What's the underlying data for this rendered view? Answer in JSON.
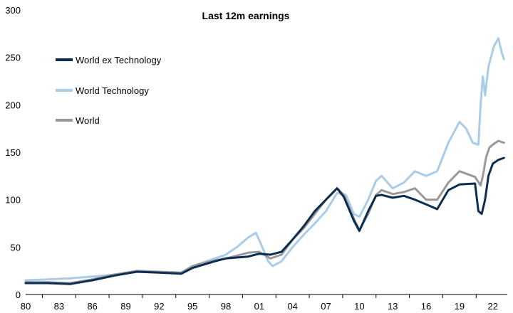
{
  "chart_data": {
    "type": "line",
    "title": "Last 12m earnings",
    "xlabel": "",
    "ylabel": "",
    "ylim": [
      0,
      300
    ],
    "xlim": [
      1980,
      2023.3
    ],
    "yticks": [
      0,
      50,
      100,
      150,
      200,
      250,
      300
    ],
    "xticks": [
      {
        "label": "80",
        "value": 1980
      },
      {
        "label": "83",
        "value": 1983
      },
      {
        "label": "86",
        "value": 1986
      },
      {
        "label": "89",
        "value": 1989
      },
      {
        "label": "92",
        "value": 1992
      },
      {
        "label": "95",
        "value": 1995
      },
      {
        "label": "98",
        "value": 1998
      },
      {
        "label": "01",
        "value": 2001
      },
      {
        "label": "04",
        "value": 2004
      },
      {
        "label": "07",
        "value": 2007
      },
      {
        "label": "10",
        "value": 2010
      },
      {
        "label": "13",
        "value": 2013
      },
      {
        "label": "16",
        "value": 2016
      },
      {
        "label": "19",
        "value": 2019
      },
      {
        "label": "22",
        "value": 2022
      }
    ],
    "grid": false,
    "legend": "top-left",
    "series": [
      {
        "name": "World Technology",
        "color": "#a9cce8",
        "points": [
          [
            1980,
            15
          ],
          [
            1982,
            16
          ],
          [
            1984,
            17
          ],
          [
            1986,
            19
          ],
          [
            1988,
            21
          ],
          [
            1990,
            24
          ],
          [
            1992,
            23
          ],
          [
            1994,
            23
          ],
          [
            1995,
            30
          ],
          [
            1997,
            38
          ],
          [
            1998,
            42
          ],
          [
            1999,
            50
          ],
          [
            2000,
            60
          ],
          [
            2000.7,
            65
          ],
          [
            2001.2,
            52
          ],
          [
            2001.8,
            35
          ],
          [
            2002.2,
            30
          ],
          [
            2003,
            35
          ],
          [
            2004,
            50
          ],
          [
            2005,
            63
          ],
          [
            2006,
            75
          ],
          [
            2007,
            88
          ],
          [
            2008,
            107
          ],
          [
            2008.8,
            105
          ],
          [
            2009.5,
            85
          ],
          [
            2010,
            82
          ],
          [
            2010.8,
            100
          ],
          [
            2011.5,
            120
          ],
          [
            2012,
            125
          ],
          [
            2013,
            112
          ],
          [
            2014,
            118
          ],
          [
            2015,
            130
          ],
          [
            2016,
            125
          ],
          [
            2017,
            130
          ],
          [
            2018,
            160
          ],
          [
            2019,
            182
          ],
          [
            2019.6,
            175
          ],
          [
            2020.2,
            160
          ],
          [
            2020.7,
            158
          ],
          [
            2020.9,
            200
          ],
          [
            2021.1,
            230
          ],
          [
            2021.3,
            210
          ],
          [
            2021.6,
            240
          ],
          [
            2022.1,
            262
          ],
          [
            2022.5,
            270
          ],
          [
            2022.8,
            255
          ],
          [
            2023,
            248
          ]
        ]
      },
      {
        "name": "World",
        "color": "#999999",
        "points": [
          [
            1980,
            13
          ],
          [
            1982,
            13
          ],
          [
            1984,
            12
          ],
          [
            1986,
            16
          ],
          [
            1988,
            21
          ],
          [
            1990,
            25
          ],
          [
            1992,
            24
          ],
          [
            1994,
            23
          ],
          [
            1995,
            30
          ],
          [
            1997,
            36
          ],
          [
            1998,
            38
          ],
          [
            2000,
            44
          ],
          [
            2001,
            45
          ],
          [
            2002,
            38
          ],
          [
            2003,
            42
          ],
          [
            2004,
            58
          ],
          [
            2005,
            70
          ],
          [
            2006,
            85
          ],
          [
            2007,
            100
          ],
          [
            2008,
            112
          ],
          [
            2008.6,
            105
          ],
          [
            2009.5,
            80
          ],
          [
            2010,
            68
          ],
          [
            2010.8,
            85
          ],
          [
            2011.5,
            105
          ],
          [
            2012,
            110
          ],
          [
            2013,
            106
          ],
          [
            2014,
            108
          ],
          [
            2015,
            112
          ],
          [
            2016,
            100
          ],
          [
            2017,
            100
          ],
          [
            2018,
            118
          ],
          [
            2019,
            130
          ],
          [
            2020.4,
            124
          ],
          [
            2020.9,
            115
          ],
          [
            2021.1,
            125
          ],
          [
            2021.4,
            145
          ],
          [
            2021.7,
            155
          ],
          [
            2022,
            158
          ],
          [
            2022.5,
            162
          ],
          [
            2023,
            160
          ]
        ]
      },
      {
        "name": "World ex Technology",
        "color": "#0c2d4f",
        "points": [
          [
            1980,
            12
          ],
          [
            1982,
            12
          ],
          [
            1984,
            11
          ],
          [
            1986,
            15
          ],
          [
            1988,
            20
          ],
          [
            1990,
            24
          ],
          [
            1992,
            23
          ],
          [
            1994,
            22
          ],
          [
            1995,
            28
          ],
          [
            1997,
            35
          ],
          [
            1998,
            38
          ],
          [
            2000,
            40
          ],
          [
            2001,
            43
          ],
          [
            2002,
            42
          ],
          [
            2003,
            45
          ],
          [
            2004,
            58
          ],
          [
            2005,
            72
          ],
          [
            2006,
            88
          ],
          [
            2007,
            100
          ],
          [
            2008,
            112
          ],
          [
            2008.6,
            103
          ],
          [
            2009.5,
            78
          ],
          [
            2010,
            67
          ],
          [
            2010.8,
            88
          ],
          [
            2011.5,
            104
          ],
          [
            2012,
            105
          ],
          [
            2013,
            102
          ],
          [
            2014,
            104
          ],
          [
            2015,
            100
          ],
          [
            2016,
            95
          ],
          [
            2017,
            90
          ],
          [
            2018,
            110
          ],
          [
            2019,
            116
          ],
          [
            2020.4,
            117
          ],
          [
            2020.7,
            88
          ],
          [
            2021,
            85
          ],
          [
            2021.3,
            100
          ],
          [
            2021.6,
            125
          ],
          [
            2022,
            138
          ],
          [
            2022.5,
            142
          ],
          [
            2023,
            144
          ]
        ]
      }
    ]
  }
}
